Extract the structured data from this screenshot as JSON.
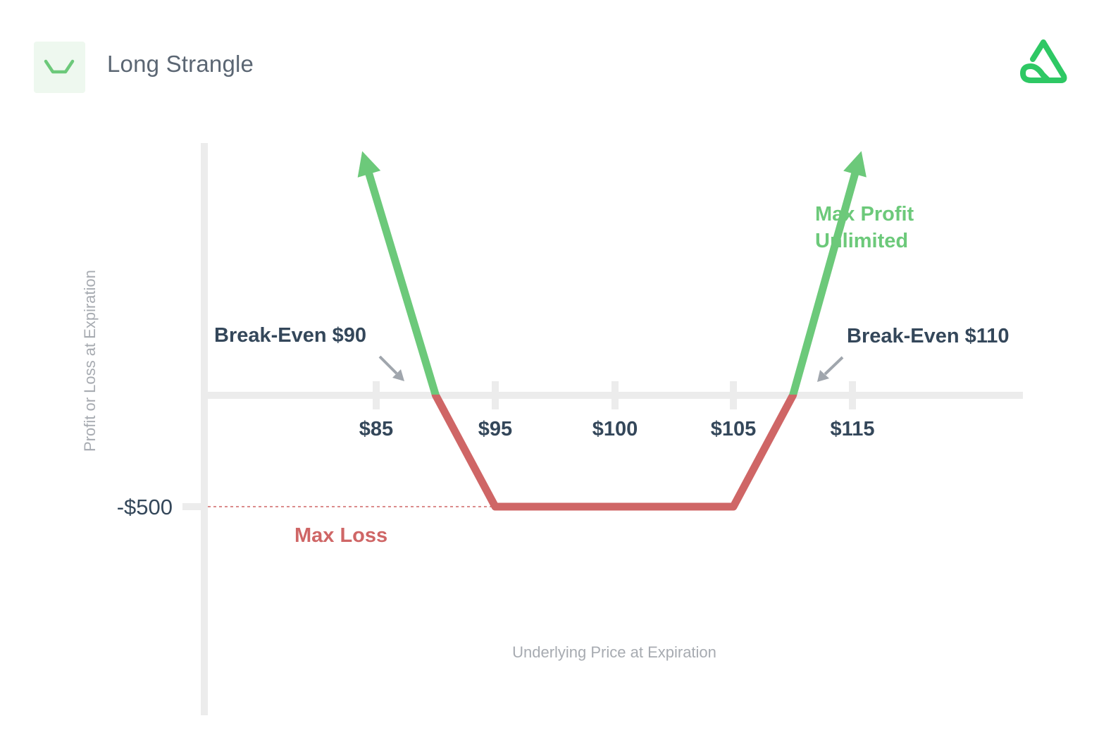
{
  "header": {
    "title": "Long Strangle",
    "strategy_icon": "strangle-payoff-icon",
    "brand_icon": "brand-logo-icon"
  },
  "colors": {
    "profit": "#6cc97a",
    "loss": "#cf6666",
    "axis": "#ececec",
    "text_dark": "#34475a",
    "text_muted": "#a7abb1",
    "arrow_gray": "#a0a6ad",
    "brand_green": "#2ec864"
  },
  "chart_data": {
    "type": "line",
    "title": "",
    "xlabel": "Underlying Price at Expiration",
    "ylabel": "Profit or Loss at Expiration",
    "x_ticks": [
      {
        "value": 85,
        "label": "$85"
      },
      {
        "value": 95,
        "label": "$95"
      },
      {
        "value": 100,
        "label": "$100"
      },
      {
        "value": 105,
        "label": "$105"
      },
      {
        "value": 115,
        "label": "$115"
      }
    ],
    "y_ticks": [
      {
        "value": -500,
        "label": "-$500"
      }
    ],
    "series": [
      {
        "x": [
          84.2,
          90,
          95,
          105,
          110,
          115.4
        ],
        "y": [
          1030,
          0,
          -500,
          -500,
          0,
          1030
        ]
      }
    ],
    "annotations": [
      {
        "text": "Break-Even $90",
        "x": 90,
        "y": 0
      },
      {
        "text": "Break-Even $110",
        "x": 110,
        "y": 0
      },
      {
        "text": "Max Profit",
        "x": 115,
        "y": 1030
      },
      {
        "text": "Unlimited",
        "x": 115,
        "y": 1030
      },
      {
        "text": "Max Loss",
        "x": 95,
        "y": -500
      }
    ]
  }
}
